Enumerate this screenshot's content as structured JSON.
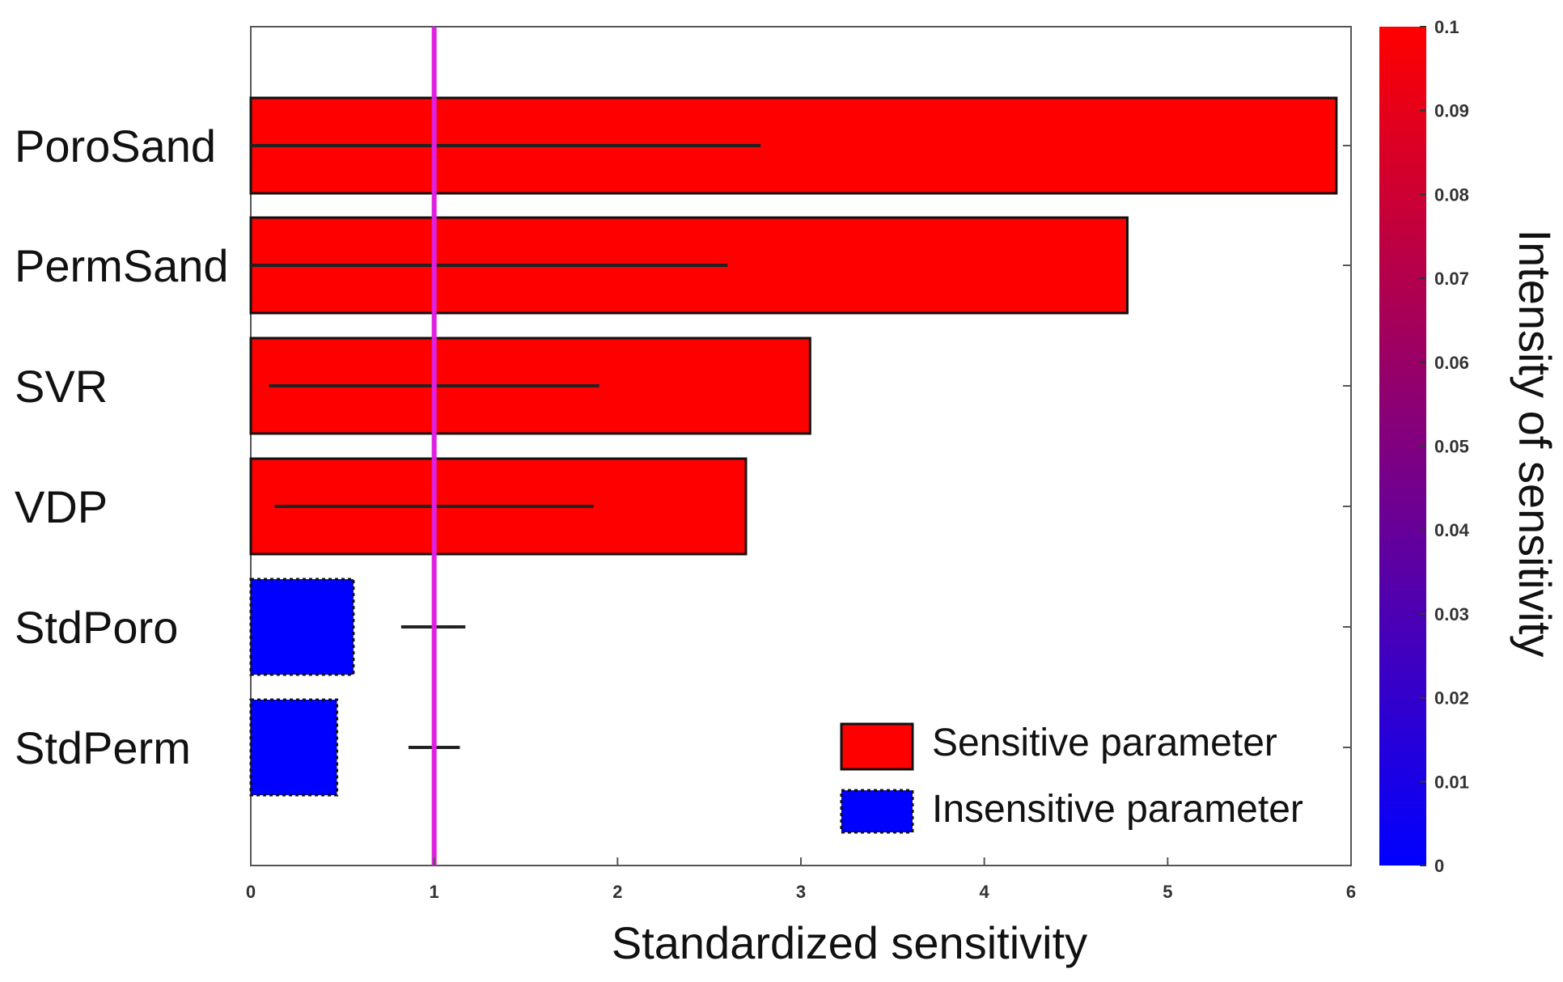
{
  "chart_data": {
    "type": "bar",
    "orientation": "horizontal",
    "categories": [
      "PoroSand",
      "PermSand",
      "SVR",
      "VDP",
      "StdPoro",
      "StdPerm"
    ],
    "values": [
      5.92,
      4.78,
      3.05,
      2.7,
      0.56,
      0.47
    ],
    "error_ranges": [
      [
        0.0,
        2.78
      ],
      [
        0.0,
        2.6
      ],
      [
        0.1,
        1.9
      ],
      [
        0.13,
        1.87
      ],
      [
        0.82,
        1.17
      ],
      [
        0.86,
        1.14
      ]
    ],
    "status": [
      "sensitive",
      "sensitive",
      "sensitive",
      "sensitive",
      "insensitive",
      "insensitive"
    ],
    "xlabel": "Standardized sensitivity",
    "xlim": [
      0,
      6
    ],
    "xticks": [
      "0",
      "1",
      "2",
      "3",
      "4",
      "5",
      "6"
    ],
    "threshold": 1,
    "threshold_color": "#e020e0",
    "legend": [
      {
        "label": "Sensitive parameter",
        "color": "#ff0000",
        "style": "solid"
      },
      {
        "label": "Insensitive parameter",
        "color": "#0000ff",
        "style": "dotted"
      }
    ],
    "legend_position": "bottom-right",
    "colorbar": {
      "label": "Intensity of sensitivity",
      "range": [
        0,
        0.1
      ],
      "ticks": [
        "0",
        "0.01",
        "0.02",
        "0.03",
        "0.04",
        "0.05",
        "0.06",
        "0.07",
        "0.08",
        "0.09",
        "0.1"
      ],
      "color_low": "#0000ff",
      "color_high": "#ff0000"
    },
    "colors": {
      "sensitive": "#ff0000",
      "insensitive": "#0000ff"
    }
  }
}
